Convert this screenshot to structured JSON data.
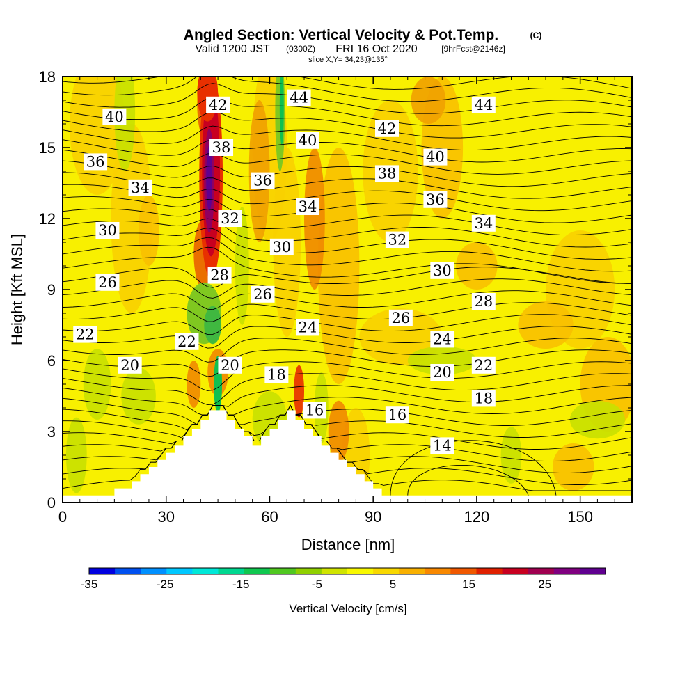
{
  "header": {
    "title": "Angled Section: Vertical Velocity & Pot.Temp.",
    "copyright": "(C)",
    "valid_prefix": "Valid 1200 JST",
    "valid_utc": "(0300Z)",
    "valid_date": "FRI 16 Oct 2020",
    "forecast": "[9hrFcst@2146z]",
    "slice": "slice X,Y= 34,23@135°"
  },
  "chart_data": {
    "type": "heatmap",
    "xlabel": "Distance [nm]",
    "ylabel": "Height [Kft MSL]",
    "xlim": [
      0,
      165
    ],
    "ylim": [
      0,
      18
    ],
    "x_ticks": [
      0,
      30,
      60,
      90,
      120,
      150
    ],
    "x_tick_labels": [
      "0",
      "30",
      "60",
      "90",
      "120",
      "150"
    ],
    "y_ticks": [
      0,
      3,
      6,
      9,
      12,
      15,
      18
    ],
    "y_tick_labels": [
      "0",
      "3",
      "6",
      "9",
      "12",
      "15",
      "18"
    ],
    "grid": false,
    "contour_labels": [
      {
        "text": "40",
        "x": 15,
        "y": 16.3
      },
      {
        "text": "36",
        "x": 9.5,
        "y": 14.4
      },
      {
        "text": "34",
        "x": 22.5,
        "y": 13.3
      },
      {
        "text": "30",
        "x": 13,
        "y": 11.5
      },
      {
        "text": "26",
        "x": 13,
        "y": 9.3
      },
      {
        "text": "22",
        "x": 6.5,
        "y": 7.1
      },
      {
        "text": "20",
        "x": 19.5,
        "y": 5.8
      },
      {
        "text": "22",
        "x": 36,
        "y": 6.8
      },
      {
        "text": "20",
        "x": 48.5,
        "y": 5.8
      },
      {
        "text": "42",
        "x": 45,
        "y": 16.8
      },
      {
        "text": "38",
        "x": 46,
        "y": 15.0
      },
      {
        "text": "32",
        "x": 48.5,
        "y": 12.0
      },
      {
        "text": "28",
        "x": 45.5,
        "y": 9.6
      },
      {
        "text": "36",
        "x": 58,
        "y": 13.6
      },
      {
        "text": "30",
        "x": 63.5,
        "y": 10.8
      },
      {
        "text": "26",
        "x": 58,
        "y": 8.8
      },
      {
        "text": "44",
        "x": 68.5,
        "y": 17.1
      },
      {
        "text": "40",
        "x": 71,
        "y": 15.3
      },
      {
        "text": "34",
        "x": 71,
        "y": 12.5
      },
      {
        "text": "24",
        "x": 71,
        "y": 7.4
      },
      {
        "text": "18",
        "x": 62,
        "y": 5.4
      },
      {
        "text": "16",
        "x": 73,
        "y": 3.9
      },
      {
        "text": "42",
        "x": 94,
        "y": 15.8
      },
      {
        "text": "38",
        "x": 94,
        "y": 13.9
      },
      {
        "text": "32",
        "x": 97,
        "y": 11.1
      },
      {
        "text": "26",
        "x": 98,
        "y": 7.8
      },
      {
        "text": "16",
        "x": 97,
        "y": 3.7
      },
      {
        "text": "40",
        "x": 108,
        "y": 14.6
      },
      {
        "text": "36",
        "x": 108,
        "y": 12.8
      },
      {
        "text": "30",
        "x": 110,
        "y": 9.8
      },
      {
        "text": "24",
        "x": 110,
        "y": 6.9
      },
      {
        "text": "20",
        "x": 110,
        "y": 5.5
      },
      {
        "text": "14",
        "x": 110,
        "y": 2.4
      },
      {
        "text": "44",
        "x": 122,
        "y": 16.8
      },
      {
        "text": "34",
        "x": 122,
        "y": 11.8
      },
      {
        "text": "28",
        "x": 122,
        "y": 8.5
      },
      {
        "text": "22",
        "x": 122,
        "y": 5.8
      },
      {
        "text": "18",
        "x": 122,
        "y": 4.4
      }
    ],
    "terrain_top_kft": [
      0.3,
      0.3,
      0.6,
      0.6,
      0.9,
      1.2,
      1.5,
      1.8,
      2.1,
      2.4,
      2.8,
      3.1,
      3.5,
      3.9,
      3.9,
      3.5,
      3.1,
      2.8,
      2.4,
      2.8,
      3.1,
      3.5,
      3.9,
      3.5,
      3.1,
      2.8,
      2.4,
      2.1,
      1.8,
      1.5,
      1.2,
      0.9,
      0.6,
      0.3
    ],
    "colorbar": {
      "label": "Vertical Velocity [cm/s]",
      "min": -35,
      "max": 33,
      "step": 4,
      "tick_values": [
        -35,
        -25,
        -15,
        -5,
        5,
        15,
        25
      ],
      "tick_labels": [
        "-35",
        "-25",
        "-15",
        "-5",
        "5",
        "15",
        "25"
      ],
      "colors": [
        "#0000e0",
        "#0050f0",
        "#0090ff",
        "#00c8ff",
        "#00e8d8",
        "#00d890",
        "#10c850",
        "#50c820",
        "#90d000",
        "#d0e400",
        "#f8f800",
        "#f8d800",
        "#f8b000",
        "#f88800",
        "#f05800",
        "#e02000",
        "#c80020",
        "#a00050",
        "#800080",
        "#600090"
      ]
    }
  }
}
